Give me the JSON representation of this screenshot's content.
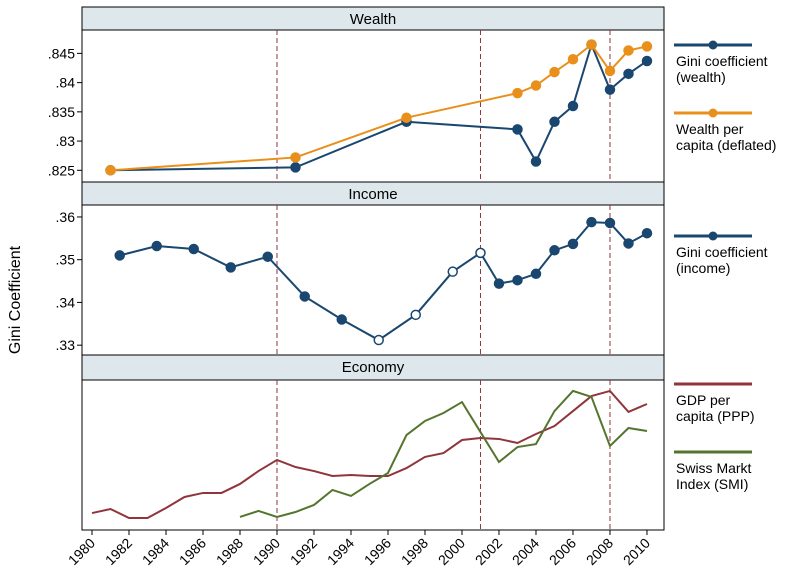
{
  "y_label": "Gini Coefficient",
  "chart_data": [
    {
      "type": "line",
      "title": "Wealth",
      "xlim": [
        1979.46,
        2010.92
      ],
      "ylim": [
        0.823,
        0.849
      ],
      "yticks": [
        {
          "value": 0.825,
          "label": ".825"
        },
        {
          "value": 0.83,
          "label": ".83"
        },
        {
          "value": 0.835,
          "label": ".835"
        },
        {
          "value": 0.84,
          "label": ".84"
        },
        {
          "value": 0.845,
          "label": ".845"
        }
      ],
      "vlines": [
        1990,
        2001,
        2008
      ],
      "series": [
        {
          "name": "Gini coefficient\n(wealth)",
          "color": "#1a476f",
          "markers": true,
          "x": [
            1981,
            1991,
            1997,
            2003,
            2004,
            2005,
            2006,
            2007,
            2008,
            2009,
            2010
          ],
          "values": [
            0.825,
            0.8255,
            0.8333,
            0.832,
            0.8265,
            0.8333,
            0.836,
            0.8465,
            0.8388,
            0.8415,
            0.8437
          ]
        },
        {
          "name": "Wealth per\ncapita (deflated)",
          "color": "#e8901b",
          "markers": true,
          "x": [
            1981,
            1991,
            1997,
            2003,
            2004,
            2005,
            2006,
            2007,
            2008,
            2009,
            2010
          ],
          "values": [
            0.825,
            0.8272,
            0.834,
            0.8382,
            0.8395,
            0.8418,
            0.844,
            0.8465,
            0.842,
            0.8455,
            0.8462
          ]
        }
      ]
    },
    {
      "type": "line",
      "title": "Income",
      "xlim": [
        1979.46,
        2010.92
      ],
      "ylim": [
        0.3277,
        0.3628
      ],
      "yticks": [
        {
          "value": 0.33,
          "label": ".33"
        },
        {
          "value": 0.34,
          "label": ".34"
        },
        {
          "value": 0.35,
          "label": ".35"
        },
        {
          "value": 0.36,
          "label": ".36"
        }
      ],
      "vlines": [
        1990,
        2001,
        2008
      ],
      "series": [
        {
          "name": "Gini coefficient\n(income)",
          "color": "#1a476f",
          "markers": true,
          "x": [
            1981.5,
            1983.5,
            1985.5,
            1987.5,
            1989.5,
            1991.5,
            1993.5,
            1995.5,
            1997.5,
            1999.5,
            2001,
            2002,
            2003,
            2004,
            2005,
            2006,
            2007,
            2008,
            2009,
            2010
          ],
          "values": [
            0.351,
            0.3532,
            0.3525,
            0.3482,
            0.3507,
            0.3414,
            0.336,
            0.3312,
            0.3371,
            0.3472,
            0.3516,
            0.3444,
            0.3452,
            0.3467,
            0.3522,
            0.3537,
            0.3588,
            0.3586,
            0.3538,
            0.3562
          ],
          "filled": [
            true,
            true,
            true,
            true,
            true,
            true,
            true,
            false,
            false,
            false,
            false,
            true,
            true,
            true,
            true,
            true,
            true,
            true,
            true,
            true
          ]
        }
      ]
    },
    {
      "type": "line",
      "title": "Economy",
      "xlim": [
        1979.46,
        2010.92
      ],
      "ylim": [
        0,
        100
      ],
      "xticks": [
        1980,
        1982,
        1984,
        1986,
        1988,
        1990,
        1992,
        1994,
        1996,
        1998,
        2000,
        2002,
        2004,
        2006,
        2008,
        2010
      ],
      "vlines": [
        1990,
        2001,
        2008
      ],
      "series": [
        {
          "name": "GDP per\ncapita (PPP)",
          "color": "#90353b",
          "markers": false,
          "x": [
            1980,
            1981,
            1982,
            1983,
            1984,
            1985,
            1986,
            1987,
            1988,
            1989,
            1990,
            1991,
            1992,
            1993,
            1994,
            1995,
            1996,
            1997,
            1998,
            1999,
            2000,
            2001,
            2002,
            2003,
            2004,
            2005,
            2006,
            2007,
            2008,
            2009,
            2010
          ],
          "values": [
            11.3,
            14,
            8,
            8,
            14.7,
            22,
            24.7,
            24.7,
            30.7,
            39.3,
            46.7,
            42,
            39.3,
            36,
            36.7,
            36,
            36,
            41.3,
            48.7,
            51.3,
            60,
            61.3,
            60.7,
            58,
            64,
            69.3,
            79.3,
            89.3,
            92.7,
            78.7,
            84
          ]
        },
        {
          "name": "Swiss Markt\nIndex (SMI)",
          "color": "#55752f",
          "markers": false,
          "x": [
            1988,
            1989,
            1990,
            1991,
            1992,
            1993,
            1994,
            1995,
            1996,
            1997,
            1998,
            1999,
            2000,
            2001,
            2002,
            2003,
            2004,
            2005,
            2006,
            2007,
            2008,
            2009,
            2010
          ],
          "values": [
            8.7,
            12.7,
            8.7,
            12,
            16.7,
            26.7,
            22.7,
            30.7,
            38,
            63.3,
            72.7,
            78,
            85.3,
            65.3,
            45.3,
            55.3,
            57.3,
            79.3,
            92.7,
            88.7,
            56,
            68,
            66
          ]
        }
      ]
    }
  ]
}
